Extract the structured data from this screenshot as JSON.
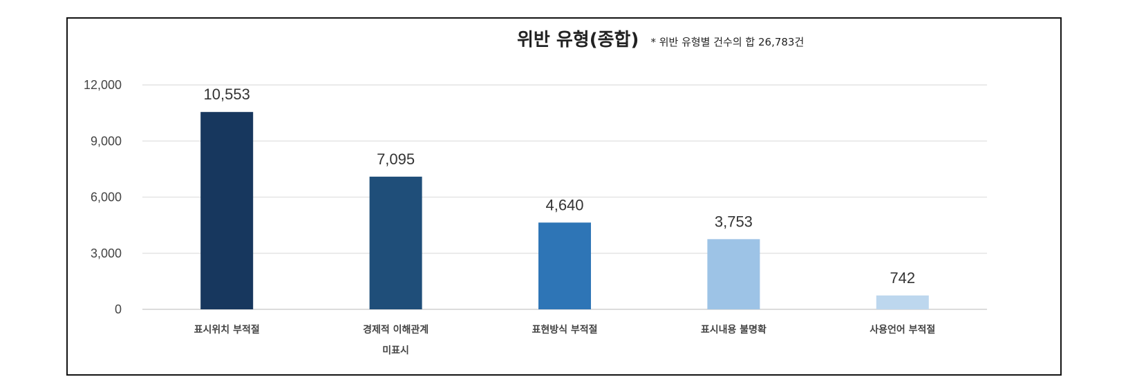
{
  "chart_data": {
    "type": "bar",
    "title": "위반 유형(종합)",
    "note": "* 위반 유형별 건수의 합 26,783건",
    "categories": [
      [
        "표시위치 부적절"
      ],
      [
        "경제적 이해관계",
        "미표시"
      ],
      [
        "표현방식 부적절"
      ],
      [
        "표시내용 불명확"
      ],
      [
        "사용언어 부적절"
      ]
    ],
    "values": [
      10553,
      7095,
      4640,
      3753,
      742
    ],
    "data_labels": [
      "10,553",
      "7,095",
      "4,640",
      "3,753",
      "742"
    ],
    "colors": [
      "#17375e",
      "#1f4e79",
      "#2e75b6",
      "#9dc3e6",
      "#bdd7ee"
    ],
    "ylim": [
      0,
      12000
    ],
    "yticks": [
      0,
      3000,
      6000,
      9000,
      12000
    ],
    "ytick_labels": [
      "0",
      "3,000",
      "6,000",
      "9,000",
      "12,000"
    ],
    "grid": true,
    "xlabel": "",
    "ylabel": ""
  }
}
